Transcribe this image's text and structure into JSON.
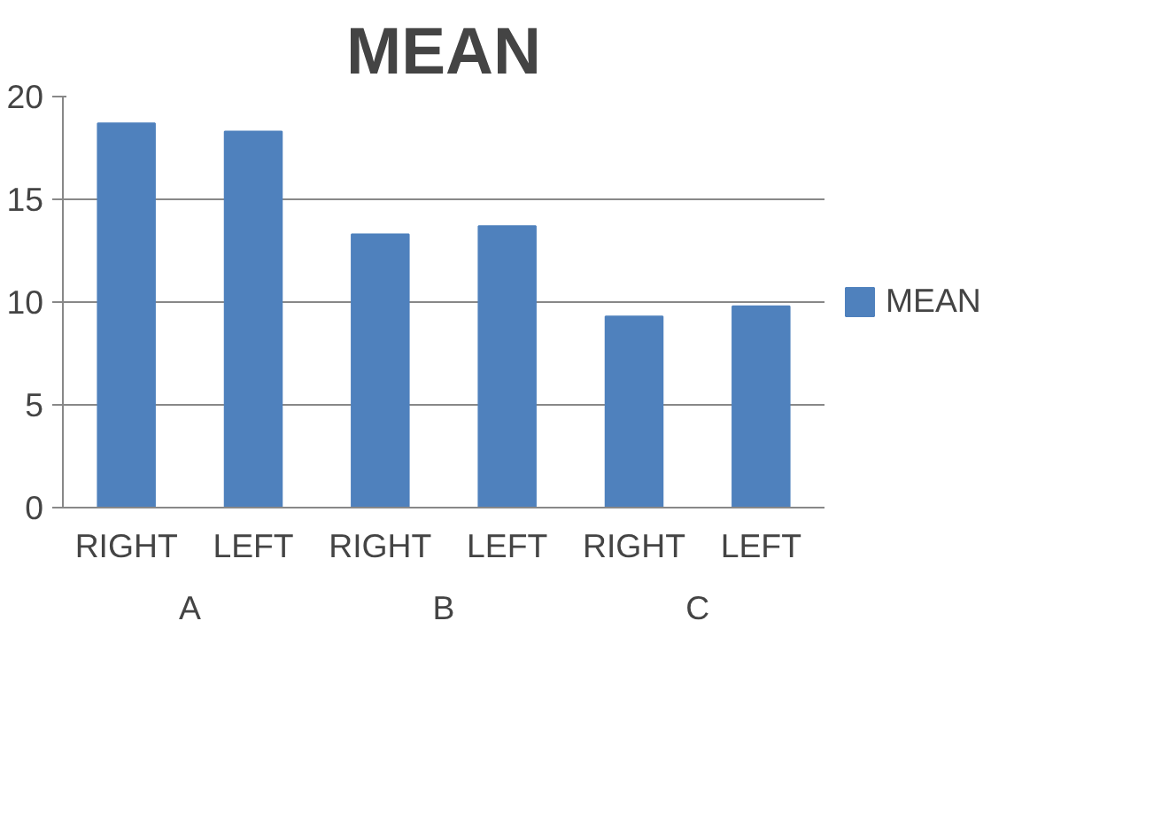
{
  "chart_data": {
    "type": "bar",
    "title": "MEAN",
    "categories": [
      "RIGHT",
      "LEFT",
      "RIGHT",
      "LEFT",
      "RIGHT",
      "LEFT"
    ],
    "series": [
      {
        "name": "MEAN",
        "color": "#4f81bd",
        "values": [
          18.7,
          18.3,
          13.3,
          13.7,
          9.3,
          9.8
        ]
      }
    ],
    "annotations": [
      "A",
      "B",
      "C"
    ],
    "ylim": [
      0,
      20
    ],
    "yticks": [
      0,
      5,
      10,
      15,
      20
    ],
    "grid": "y",
    "legend": "right"
  }
}
